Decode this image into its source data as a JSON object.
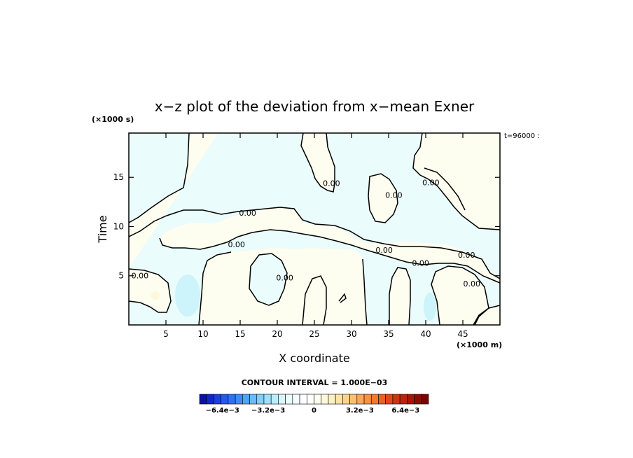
{
  "chart_data": {
    "type": "heatmap",
    "title": "x−z plot of the deviation from x−mean Exner",
    "xlabel": "X coordinate",
    "ylabel": "Time",
    "x_unit_label": "(×1000 m)",
    "y_unit_label": "(×1000 s)",
    "time_label": "t=96000 :",
    "xlim": [
      0,
      50
    ],
    "ylim": [
      0,
      19.5
    ],
    "x_ticks": [
      5,
      10,
      15,
      20,
      25,
      30,
      35,
      40,
      45
    ],
    "y_ticks": [
      5,
      10,
      15
    ],
    "contour_interval_label": "CONTOUR INTERVAL = 1.000E−03",
    "contour_labels": [
      {
        "text": "0.00",
        "x": 1.5,
        "y": 5.0
      },
      {
        "text": "0.00",
        "x": 16.0,
        "y": 11.4
      },
      {
        "text": "0.00",
        "x": 14.5,
        "y": 8.2
      },
      {
        "text": "0.00",
        "x": 21.0,
        "y": 4.8
      },
      {
        "text": "0.00",
        "x": 27.3,
        "y": 14.4
      },
      {
        "text": "0.00",
        "x": 34.4,
        "y": 7.6
      },
      {
        "text": "0.00",
        "x": 35.7,
        "y": 13.2
      },
      {
        "text": "0.00",
        "x": 39.3,
        "y": 6.3
      },
      {
        "text": "0.00",
        "x": 40.7,
        "y": 14.5
      },
      {
        "text": "0.00",
        "x": 45.5,
        "y": 7.1
      },
      {
        "text": "0.00",
        "x": 46.2,
        "y": 4.2
      }
    ],
    "colorbar": {
      "min": -0.008,
      "max": 0.008,
      "tick_labels": [
        {
          "text": "−6.4e−3",
          "value": -0.0064
        },
        {
          "text": "−3.2e−3",
          "value": -0.0032
        },
        {
          "text": "0",
          "value": 0
        },
        {
          "text": "3.2e−3",
          "value": 0.0032
        },
        {
          "text": "6.4e−3",
          "value": 0.0064
        }
      ],
      "colors": [
        "#0a10a0",
        "#1226c8",
        "#1c3ee0",
        "#2458f0",
        "#2c72f8",
        "#3a8cfc",
        "#4ea6fc",
        "#66bcfc",
        "#80d0fc",
        "#9ee0fc",
        "#bcecfc",
        "#d8f6fc",
        "#eafcfc",
        "#f4fefe",
        "#ffffff",
        "#ffffff",
        "#fdfdf0",
        "#fcf8dc",
        "#fcf0c4",
        "#fce4a8",
        "#fcd48c",
        "#fcc070",
        "#fca858",
        "#fa9040",
        "#f47830",
        "#ec6020",
        "#e04818",
        "#d03410",
        "#be220c",
        "#a81408",
        "#900a04",
        "#780402"
      ]
    }
  }
}
